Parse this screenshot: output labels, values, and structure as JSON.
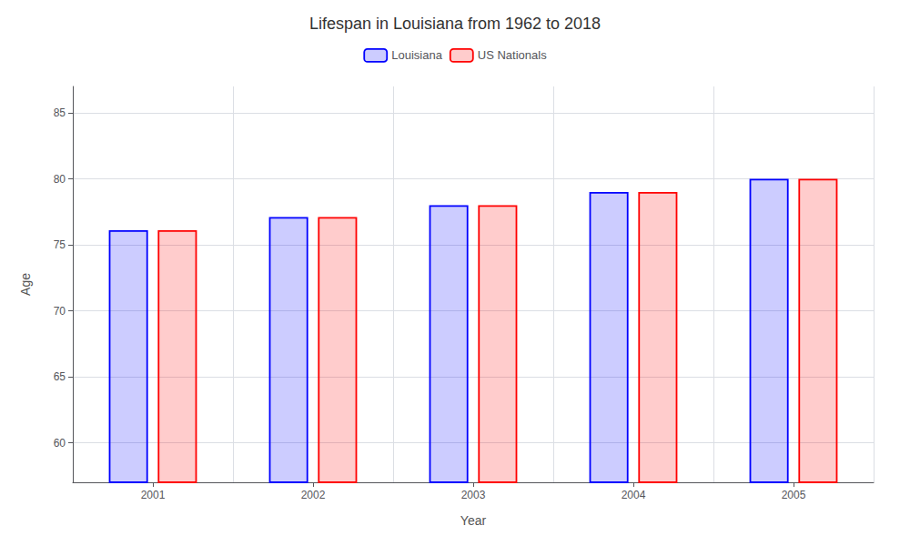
{
  "chart_data": {
    "type": "bar",
    "title": "Lifespan in Louisiana from 1962 to 2018",
    "xlabel": "Year",
    "ylabel": "Age",
    "categories": [
      "2001",
      "2002",
      "2003",
      "2004",
      "2005"
    ],
    "series": [
      {
        "name": "Louisiana",
        "color": "#0000ff",
        "values": [
          76.1,
          77.1,
          78.0,
          79.0,
          80.0
        ]
      },
      {
        "name": "US Nationals",
        "color": "#ff0000",
        "values": [
          76.1,
          77.1,
          78.0,
          79.0,
          80.0
        ]
      }
    ],
    "ylim": [
      57,
      87
    ],
    "yticks": [
      60,
      65,
      70,
      75,
      80,
      85
    ],
    "grid": true,
    "legend": "top"
  }
}
